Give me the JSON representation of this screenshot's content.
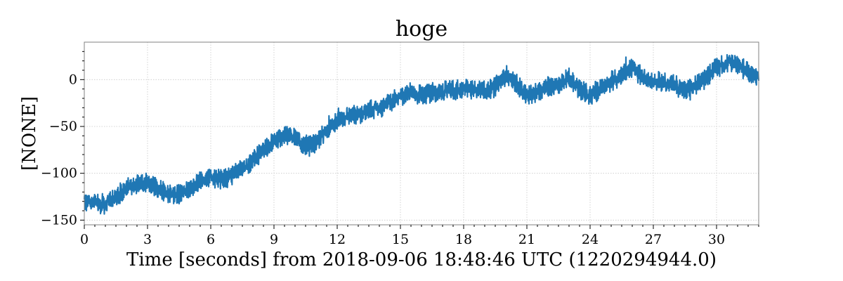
{
  "chart_data": {
    "type": "line",
    "title": "hoge",
    "xlabel": "Time [seconds] from 2018-09-06 18:48:46 UTC (1220294944.0)",
    "ylabel": "[NONE]",
    "xlim": [
      0,
      32
    ],
    "ylim": [
      -155,
      40
    ],
    "xticks": [
      0,
      3,
      6,
      9,
      12,
      15,
      18,
      21,
      24,
      27,
      30
    ],
    "xtick_labels": [
      "0",
      "3",
      "6",
      "9",
      "12",
      "15",
      "18",
      "21",
      "24",
      "27",
      "30"
    ],
    "yticks": [
      0,
      -50,
      -100,
      -150
    ],
    "ytick_labels": [
      "0",
      "−50",
      "−100",
      "−150"
    ],
    "grid": true,
    "series_color": "#1f77b4",
    "series": [
      {
        "x": [
          0,
          0.5,
          1.0,
          1.5,
          2.0,
          2.5,
          3.0,
          3.5,
          4.0,
          4.5,
          5.0,
          5.5,
          6.0,
          6.5,
          7.0,
          7.5,
          8.0,
          8.5,
          9.0,
          9.5,
          10.0,
          10.5,
          11.0,
          11.5,
          12.0,
          12.5,
          13.0,
          13.5,
          14.0,
          14.5,
          15.0,
          15.5,
          16.0,
          16.5,
          17.0,
          17.5,
          18.0,
          18.5,
          19.0,
          19.5,
          20.0,
          20.5,
          21.0,
          21.5,
          22.0,
          22.5,
          23.0,
          23.5,
          24.0,
          24.5,
          25.0,
          25.5,
          26.0,
          26.5,
          27.0,
          27.5,
          28.0,
          28.5,
          29.0,
          29.5,
          30.0,
          30.5,
          31.0,
          31.5,
          32.0
        ],
        "y": [
          -130,
          -132,
          -133,
          -126,
          -115,
          -111,
          -111,
          -116,
          -121,
          -122,
          -118,
          -109,
          -103,
          -107,
          -102,
          -95,
          -86,
          -74,
          -67,
          -59,
          -62,
          -70,
          -67,
          -55,
          -43,
          -38,
          -38,
          -33,
          -30,
          -24,
          -18,
          -13,
          -17,
          -14,
          -13,
          -11,
          -11,
          -10,
          -12,
          -8,
          5,
          -4,
          -18,
          -12,
          -8,
          -7,
          3,
          -11,
          -17,
          -10,
          -2,
          4,
          13,
          3,
          -3,
          -2,
          -5,
          -12,
          -6,
          2,
          13,
          18,
          17,
          8,
          0
        ],
        "noise_band": 14
      }
    ]
  }
}
